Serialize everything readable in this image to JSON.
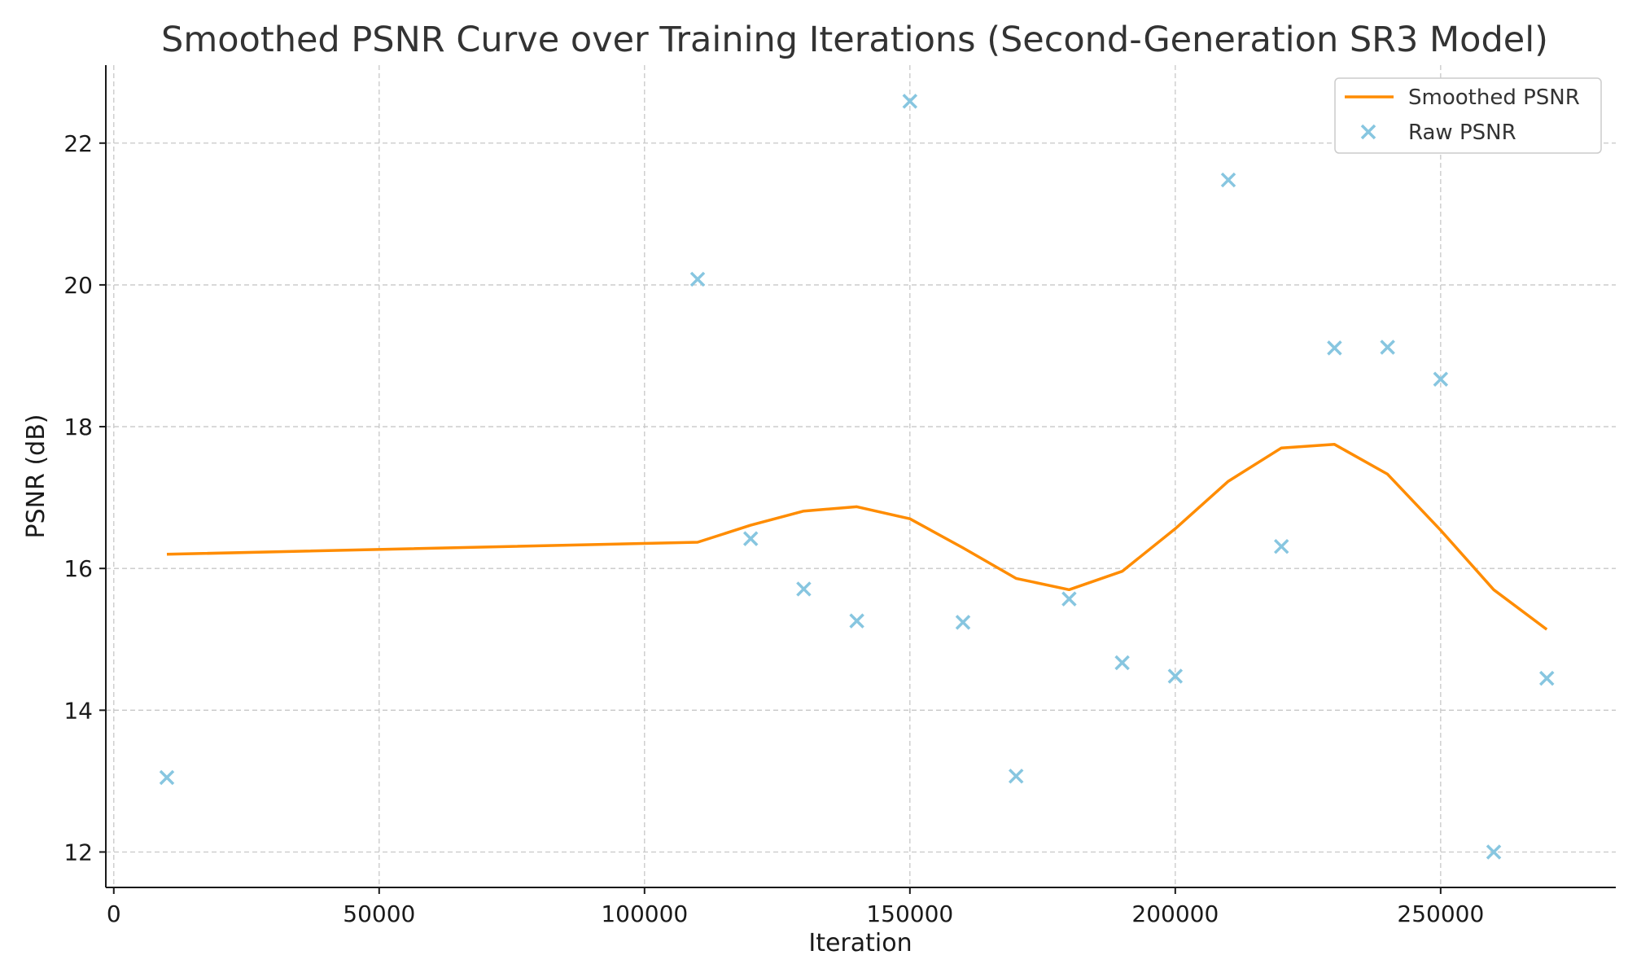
{
  "chart_data": {
    "type": "line",
    "title": "Smoothed PSNR Curve over Training Iterations (Second-Generation SR3 Model)",
    "xlabel": "Iteration",
    "ylabel": "PSNR (dB)",
    "xlim": [
      -1500,
      283000
    ],
    "ylim": [
      11.5,
      23.1
    ],
    "x_ticks": [
      0,
      50000,
      100000,
      150000,
      200000,
      250000
    ],
    "y_ticks": [
      12,
      14,
      16,
      18,
      20,
      22
    ],
    "grid": true,
    "legend_position": "top-right",
    "series": [
      {
        "name": "Smoothed PSNR",
        "kind": "line",
        "color": "#ff8c00",
        "x": [
          10000,
          110000,
          120000,
          130000,
          140000,
          150000,
          160000,
          170000,
          180000,
          190000,
          200000,
          210000,
          220000,
          230000,
          240000,
          250000,
          260000,
          270000
        ],
        "values": [
          16.2,
          16.37,
          16.61,
          16.81,
          16.87,
          16.7,
          16.29,
          15.86,
          15.7,
          15.96,
          16.56,
          17.23,
          17.7,
          17.75,
          17.33,
          16.54,
          15.7,
          15.14
        ]
      },
      {
        "name": "Raw PSNR",
        "kind": "scatter",
        "marker": "x",
        "color": "#87c6e0",
        "x": [
          10000,
          110000,
          120000,
          130000,
          140000,
          150000,
          160000,
          170000,
          180000,
          190000,
          200000,
          210000,
          220000,
          230000,
          240000,
          250000,
          260000,
          270000
        ],
        "values": [
          13.05,
          20.08,
          16.42,
          15.71,
          15.26,
          22.59,
          15.24,
          13.07,
          15.57,
          14.67,
          14.48,
          21.48,
          16.31,
          19.11,
          19.12,
          18.67,
          12.0,
          14.45
        ]
      }
    ]
  }
}
